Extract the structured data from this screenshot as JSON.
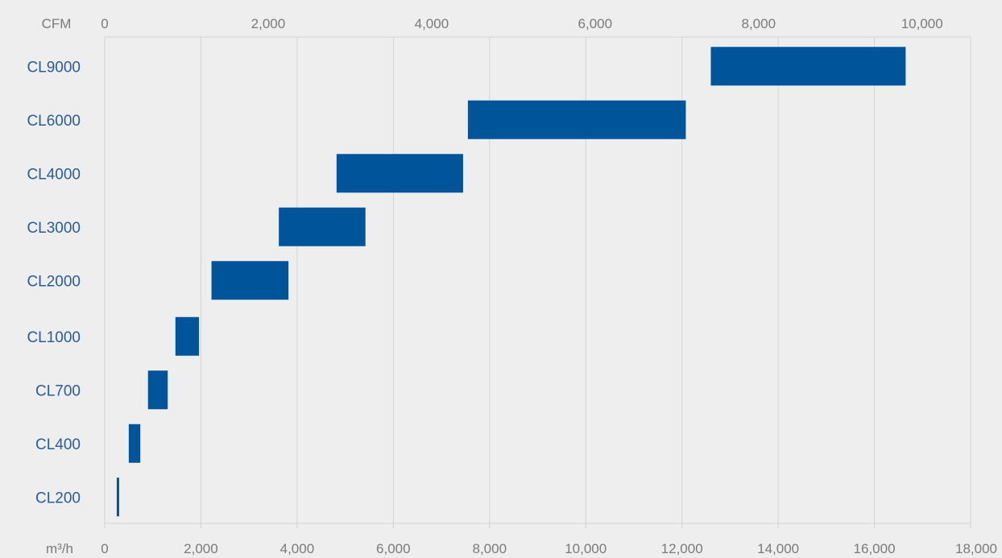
{
  "chart_data": {
    "type": "bar",
    "orientation": "horizontal-range",
    "categories": [
      "CL9000",
      "CL6000",
      "CL4000",
      "CL3000",
      "CL2000",
      "CL1000",
      "CL700",
      "CL400",
      "CL200"
    ],
    "ranges_m3h": [
      [
        12600,
        16650
      ],
      [
        7550,
        12080
      ],
      [
        4820,
        7450
      ],
      [
        3620,
        5420
      ],
      [
        2220,
        3820
      ],
      [
        1470,
        1960
      ],
      [
        900,
        1310
      ],
      [
        500,
        740
      ],
      [
        250,
        300
      ]
    ],
    "bar_color": "#00549a",
    "x_axis_bottom": {
      "unit_label": "m³/h",
      "range": [
        0,
        18000
      ],
      "ticks": [
        0,
        2000,
        4000,
        6000,
        8000,
        10000,
        12000,
        14000,
        16000,
        18000
      ],
      "tick_labels": [
        "0",
        "2,000",
        "4,000",
        "6,000",
        "8,000",
        "10,000",
        "12,000",
        "14,000",
        "16,000",
        "18,000"
      ]
    },
    "x_axis_top": {
      "unit_label": "CFM",
      "range": [
        0,
        10594
      ],
      "ticks": [
        0,
        2000,
        4000,
        6000,
        8000,
        10000
      ],
      "tick_labels": [
        "0",
        "2,000",
        "4,000",
        "6,000",
        "8,000",
        "10,000"
      ]
    },
    "grid": true,
    "legend": "none"
  }
}
